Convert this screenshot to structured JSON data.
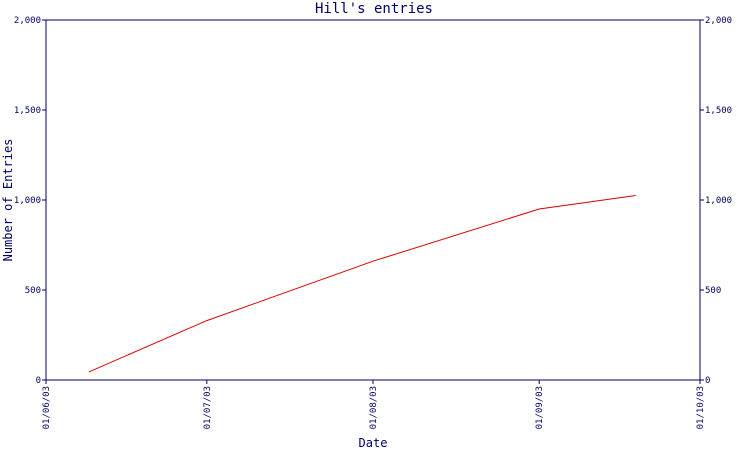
{
  "chart_data": {
    "type": "line",
    "title": "Hill's entries",
    "xlabel": "Date",
    "ylabel": "Number of Entries",
    "x_ticks": [
      "01/06/03",
      "01/07/03",
      "01/08/03",
      "01/09/03",
      "01/10/03"
    ],
    "y_ticks": [
      "0",
      "500",
      "1,000",
      "1,500",
      "2,000"
    ],
    "ylim": [
      0,
      2000
    ],
    "xlim": [
      "2003-06-01",
      "2003-10-01"
    ],
    "grid": false,
    "series": [
      {
        "color": "#dd0000",
        "x": [
          "2003-06-09",
          "2003-07-01",
          "2003-08-01",
          "2003-09-01",
          "2003-09-19"
        ],
        "y": [
          45,
          330,
          660,
          950,
          1025
        ]
      }
    ],
    "axis_color": "#000066"
  }
}
